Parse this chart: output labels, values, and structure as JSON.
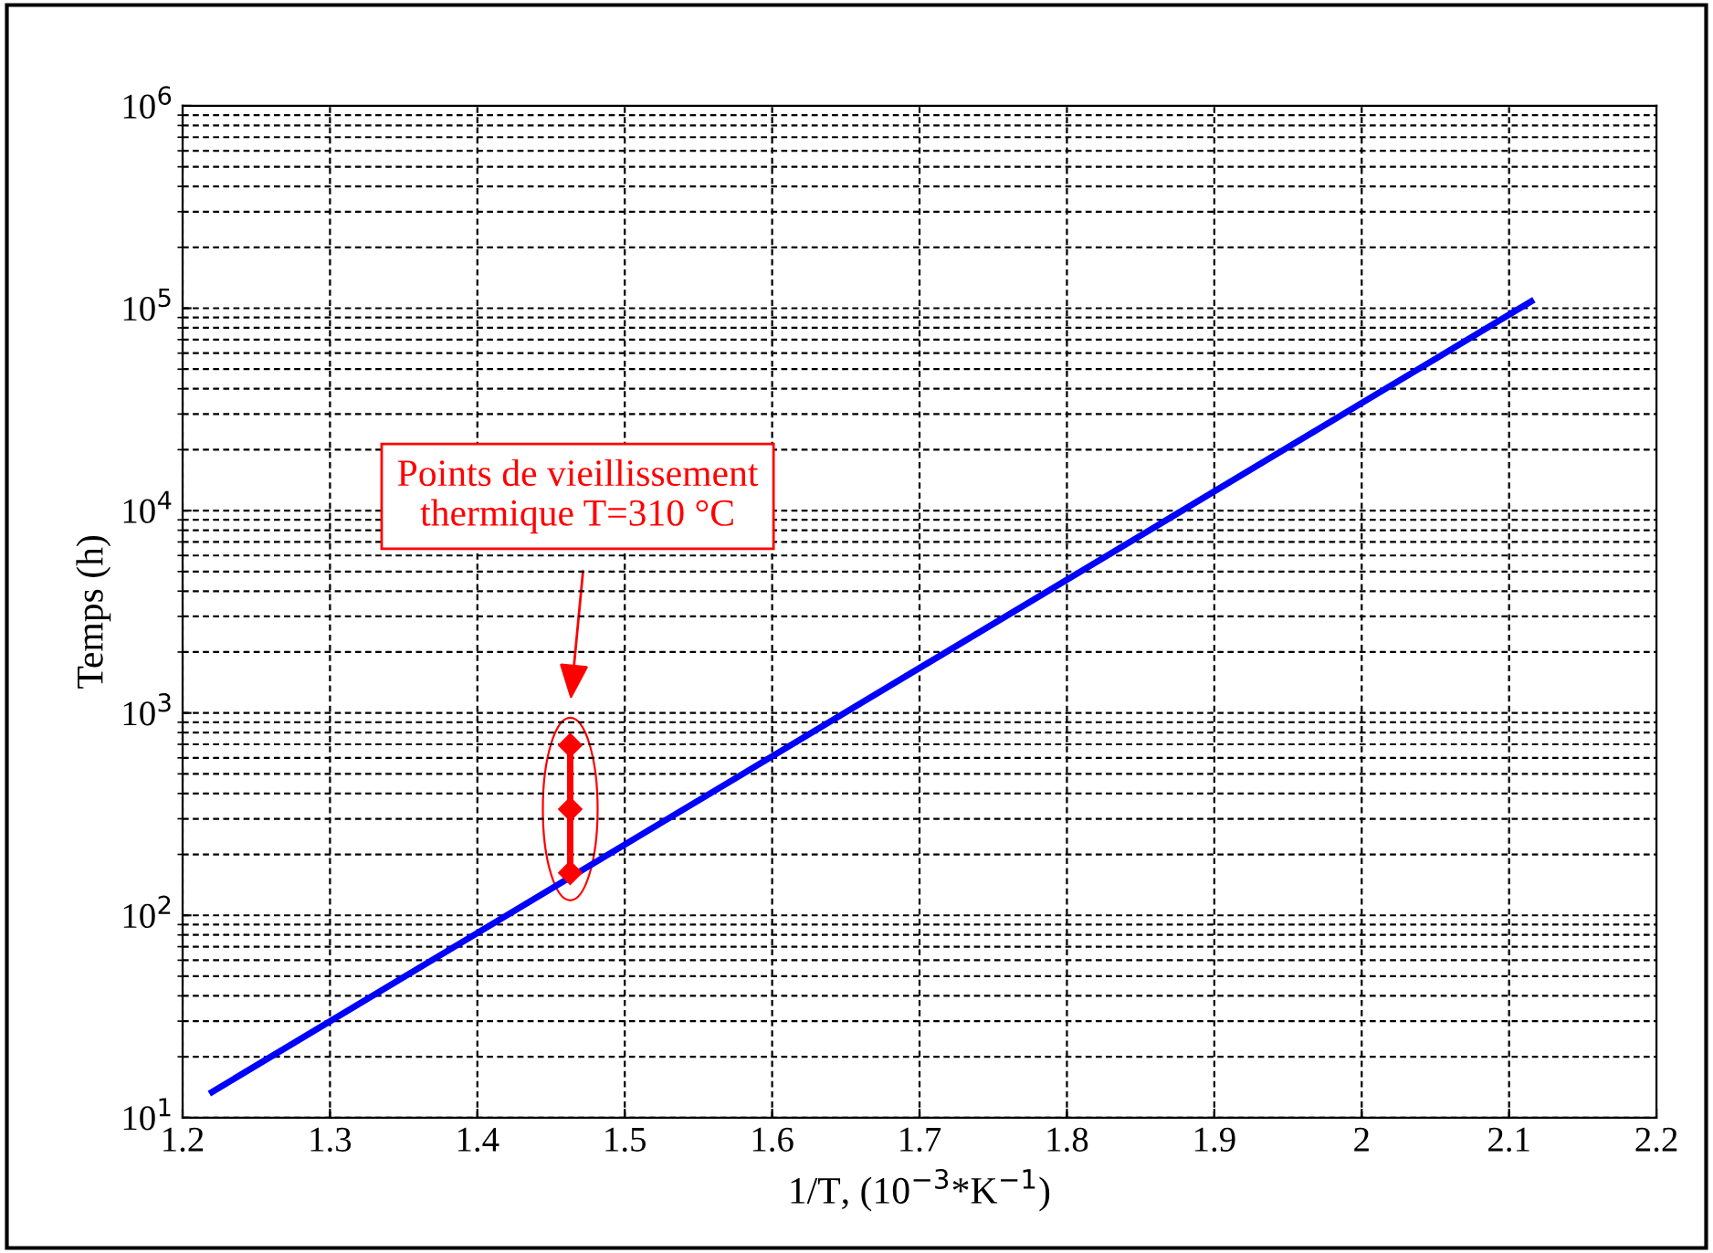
{
  "chart_data": {
    "type": "line",
    "xlabel": "1/T, (10$^{−3}$*K$^{−1}$)",
    "ylabel": "Temps (h)",
    "log": "y",
    "grid": true,
    "xlim": [
      1.2,
      2.2
    ],
    "xticks": [
      1.2,
      1.3,
      1.4,
      1.5,
      1.6,
      1.7,
      1.8,
      1.9,
      2,
      2.1,
      2.2
    ],
    "ylim": [
      10,
      1000000
    ],
    "yticks": [
      {
        "value": 10,
        "label": "10$^{1}$"
      },
      {
        "value": 100,
        "label": "10$^{2}$"
      },
      {
        "value": 1000,
        "label": "10$^{3}$"
      },
      {
        "value": 10000,
        "label": "10$^{4}$"
      },
      {
        "value": 100000,
        "label": "10$^{5}$"
      },
      {
        "value": 1000000,
        "label": "10$^{6}$"
      }
    ],
    "series": [
      {
        "color": "#0000ff",
        "x": [
          1.22,
          2.115
        ],
        "values": [
          13.4,
          108000
        ],
        "marker": "none"
      },
      {
        "type": "line",
        "color": "#ff0000",
        "x": [
          1.463,
          1.463,
          1.463
        ],
        "values": [
          162,
          335,
          693
        ],
        "marker": "diamond"
      }
    ],
    "annotations": [
      "Points de vieillissement\nthermique T=310 °C"
    ]
  }
}
